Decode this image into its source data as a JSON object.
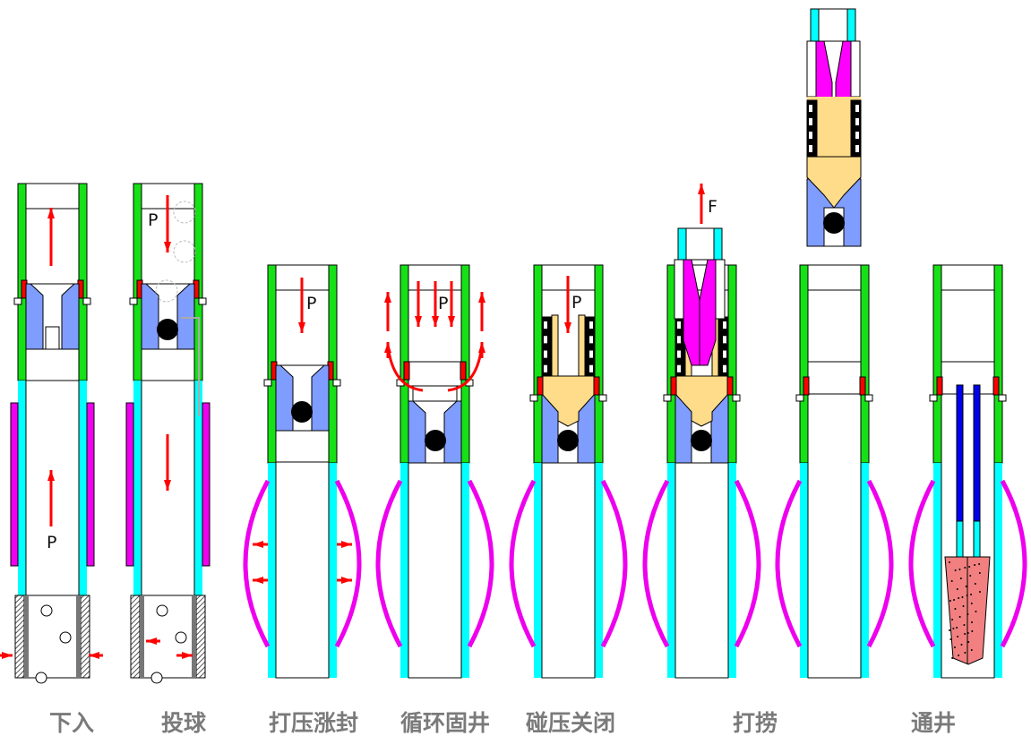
{
  "stages": [
    {
      "label": "下入"
    },
    {
      "label": "投球"
    },
    {
      "label": "打压涨封"
    },
    {
      "label": "循环固井"
    },
    {
      "label": "碰压关闭"
    },
    {
      "label": "打捞"
    },
    {
      "label": "通井"
    }
  ],
  "marks": {
    "pressure": "P",
    "force": "F"
  },
  "colors": {
    "upper_body": "#16e016",
    "lower_body": "#00ffff",
    "expansion_bow": "#ee00ee",
    "seat": "#7f9cff",
    "dog": "#ff0000",
    "plug": "#ffdc8a",
    "rubber": "#000000",
    "spear": "#ff00ff",
    "drift_rod": "#0000ee",
    "mill": "#f28080",
    "arrow": "#ff0000",
    "label": "#7a7a7a"
  }
}
